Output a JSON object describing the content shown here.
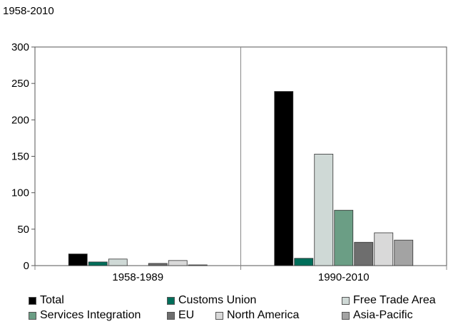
{
  "subtitle": "1958-2010",
  "chart_data": {
    "type": "bar",
    "title": "",
    "subtitle": "1958-2010",
    "xlabel": "",
    "ylabel": "",
    "ylim": [
      0,
      300
    ],
    "yticks": [
      0,
      50,
      100,
      150,
      200,
      250,
      300
    ],
    "grid": false,
    "legend_position": "bottom",
    "categories": [
      "1958-1989",
      "1990-2010"
    ],
    "series": [
      {
        "name": "Total",
        "color": "#000000",
        "values": [
          16,
          239
        ]
      },
      {
        "name": "Customs Union",
        "color": "#006e5a",
        "values": [
          5,
          10
        ]
      },
      {
        "name": "Free Trade Area",
        "color": "#cfd9d6",
        "values": [
          9,
          153
        ]
      },
      {
        "name": "Services Integration",
        "color": "#6b9e85",
        "values": [
          0,
          76
        ]
      },
      {
        "name": "EU",
        "color": "#6e6e6e",
        "values": [
          3,
          32
        ]
      },
      {
        "name": "North America",
        "color": "#d9d9d9",
        "values": [
          7,
          45
        ]
      },
      {
        "name": "Asia-Pacific",
        "color": "#a3a3a3",
        "values": [
          1,
          35
        ]
      }
    ]
  }
}
